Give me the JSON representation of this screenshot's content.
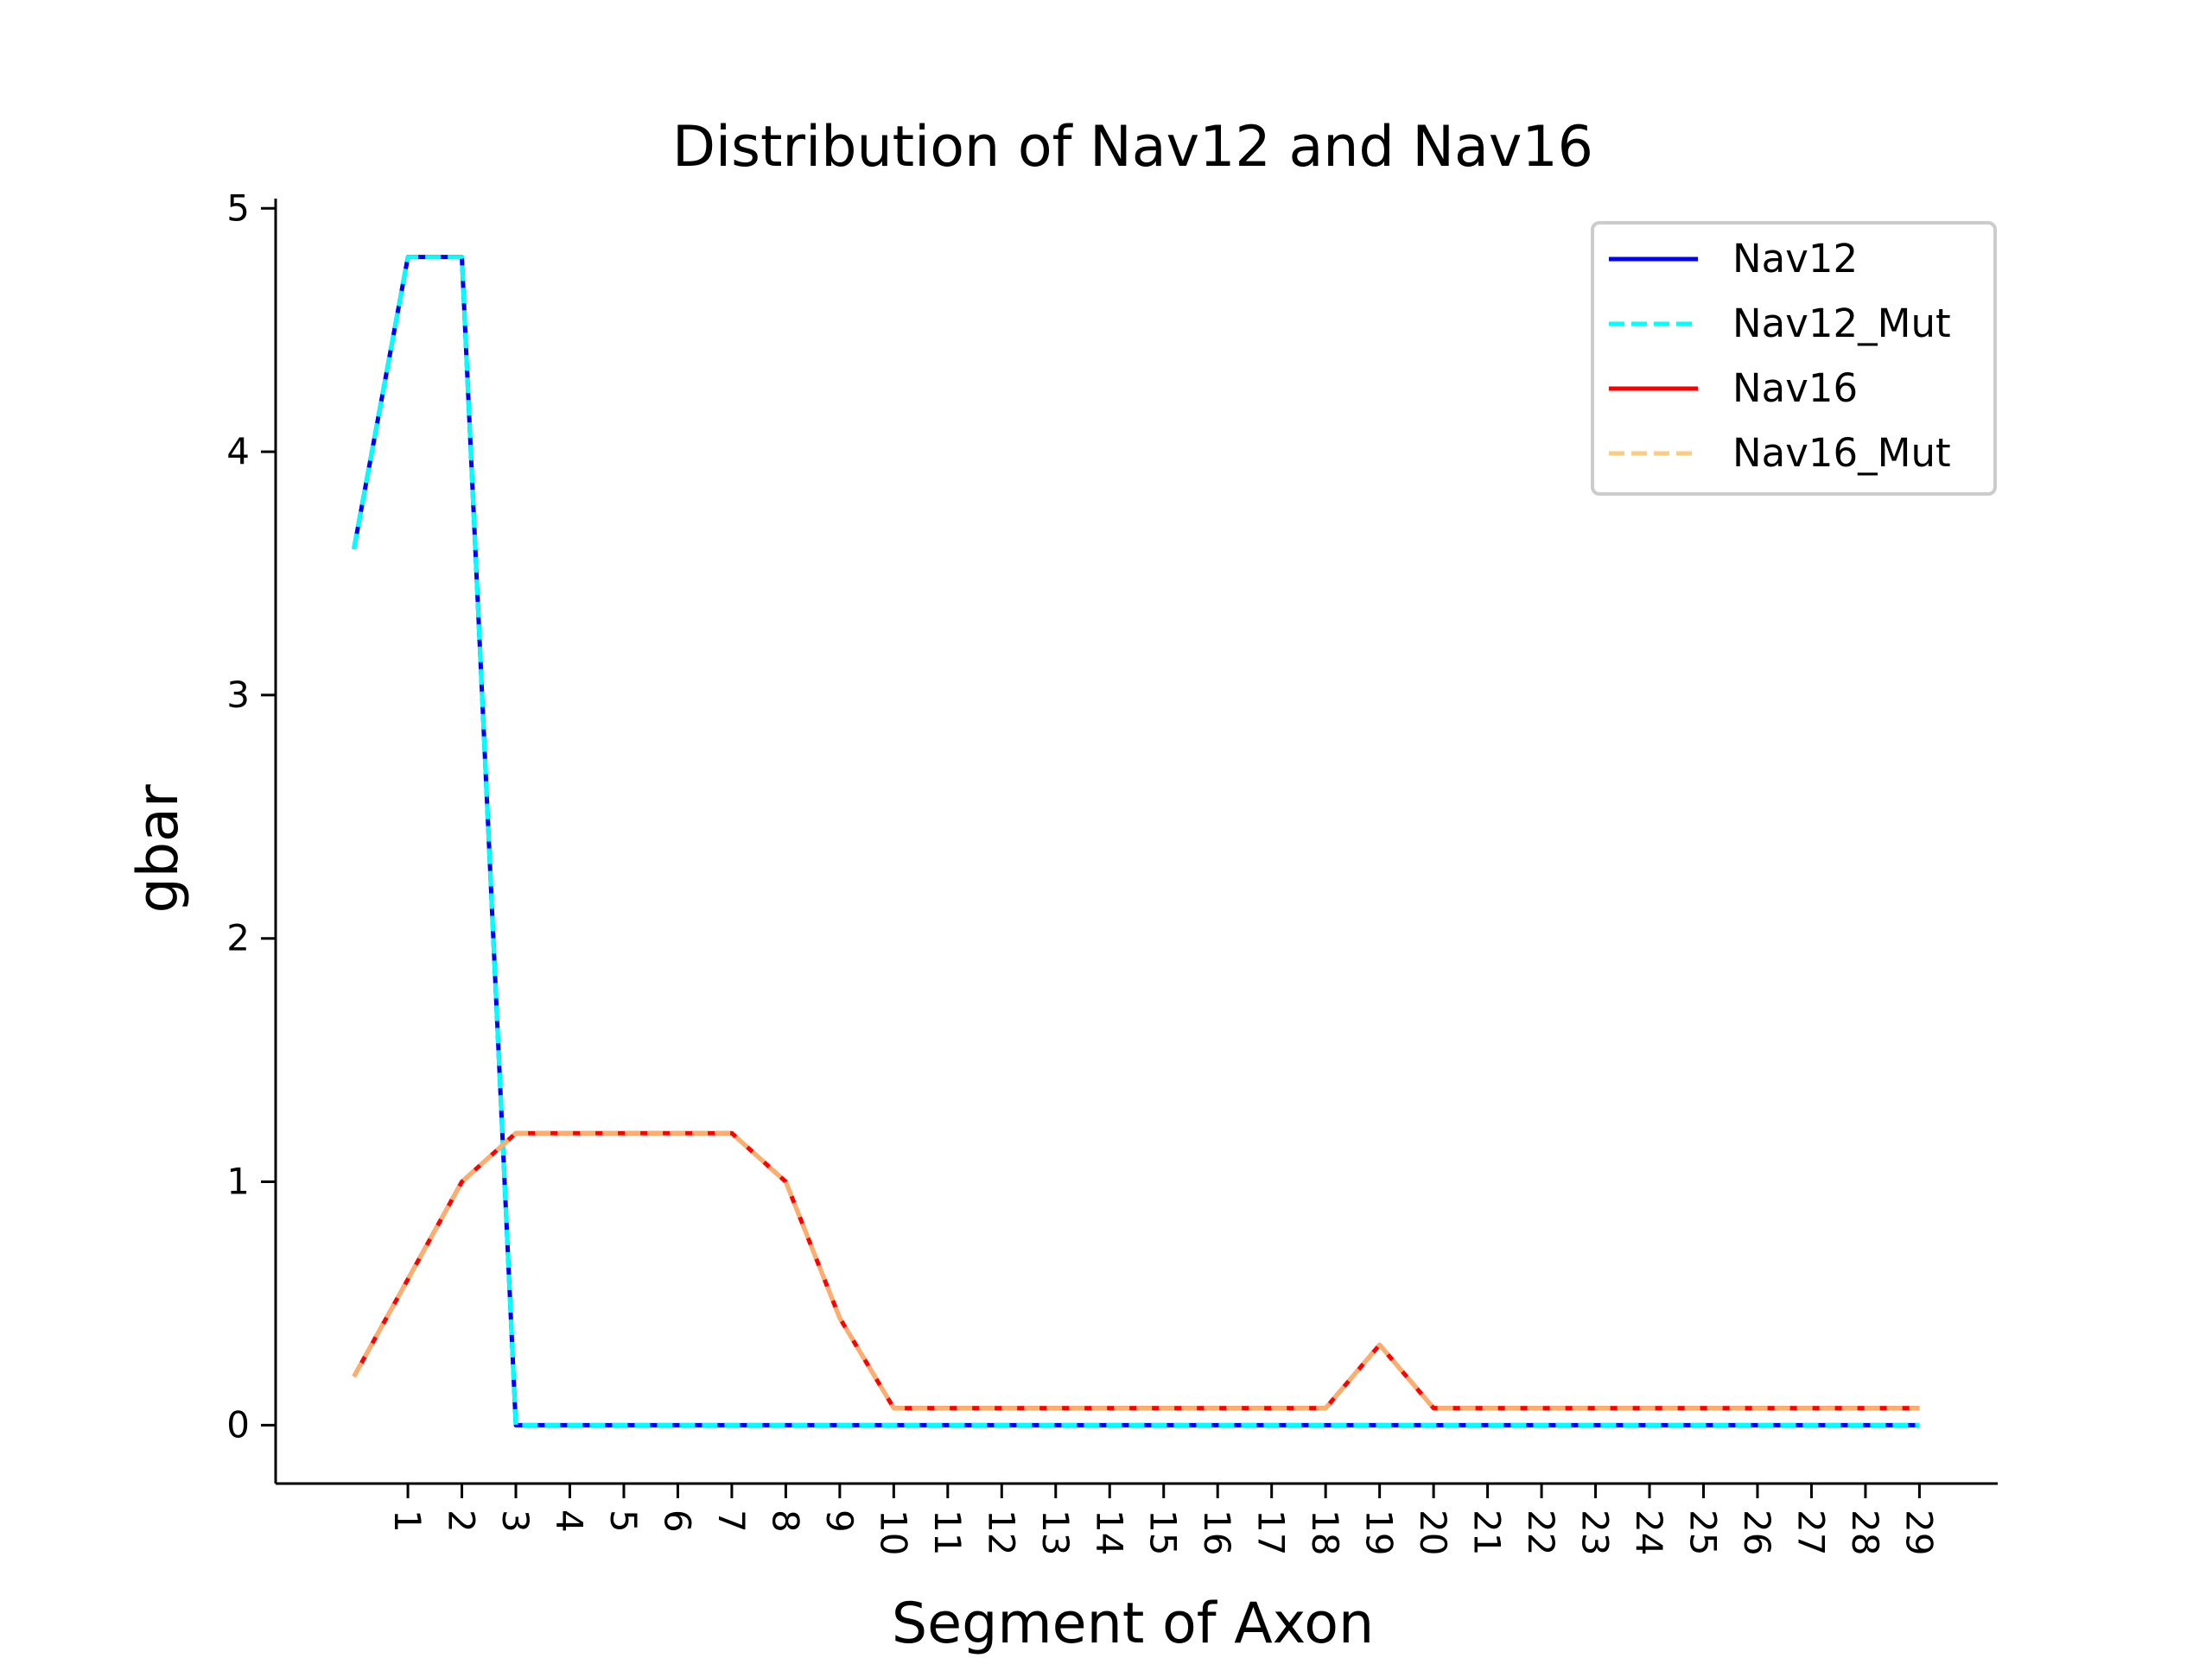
{
  "chart_data": {
    "type": "line",
    "title": "Distribution of Nav12 and Nav16",
    "xlabel": "Segment of Axon",
    "ylabel": "gbar",
    "x": [
      0,
      1,
      2,
      3,
      4,
      5,
      6,
      7,
      8,
      9,
      10,
      11,
      12,
      13,
      14,
      15,
      16,
      17,
      18,
      19,
      20,
      21,
      22,
      23,
      24,
      25,
      26,
      27,
      28,
      29
    ],
    "xticks": [
      1,
      2,
      3,
      4,
      5,
      6,
      7,
      8,
      9,
      10,
      11,
      12,
      13,
      14,
      15,
      16,
      17,
      18,
      19,
      20,
      21,
      22,
      23,
      24,
      25,
      26,
      27,
      28,
      29
    ],
    "yticks": [
      0,
      1,
      2,
      3,
      4,
      5
    ],
    "xlim": [
      -1.45,
      30.45
    ],
    "ylim": [
      -0.24,
      5.04
    ],
    "legend_position": "top-right",
    "grid": false,
    "series": [
      {
        "name": "Nav12",
        "color": "#0000ff",
        "style": "solid",
        "values": [
          3.6,
          4.8,
          4.8,
          0,
          0,
          0,
          0,
          0,
          0,
          0,
          0,
          0,
          0,
          0,
          0,
          0,
          0,
          0,
          0,
          0,
          0,
          0,
          0,
          0,
          0,
          0,
          0,
          0,
          0,
          0
        ]
      },
      {
        "name": "Nav12_Mut",
        "color": "#00ffff",
        "style": "dashed",
        "values": [
          3.6,
          4.8,
          4.8,
          0,
          0,
          0,
          0,
          0,
          0,
          0,
          0,
          0,
          0,
          0,
          0,
          0,
          0,
          0,
          0,
          0,
          0,
          0,
          0,
          0,
          0,
          0,
          0,
          0,
          0,
          0
        ]
      },
      {
        "name": "Nav16",
        "color": "#ff0000",
        "style": "solid",
        "values": [
          0.2,
          0.6,
          1.0,
          1.2,
          1.2,
          1.2,
          1.2,
          1.2,
          1.0,
          0.44,
          0.07,
          0.07,
          0.07,
          0.07,
          0.07,
          0.07,
          0.07,
          0.07,
          0.07,
          0.33,
          0.07,
          0.07,
          0.07,
          0.07,
          0.07,
          0.07,
          0.07,
          0.07,
          0.07,
          0.07
        ]
      },
      {
        "name": "Nav16_Mut",
        "color": "#fdcc80",
        "style": "dashed",
        "values": [
          0.2,
          0.6,
          1.0,
          1.2,
          1.2,
          1.2,
          1.2,
          1.2,
          1.0,
          0.44,
          0.07,
          0.07,
          0.07,
          0.07,
          0.07,
          0.07,
          0.07,
          0.07,
          0.07,
          0.33,
          0.07,
          0.07,
          0.07,
          0.07,
          0.07,
          0.07,
          0.07,
          0.07,
          0.07,
          0.07
        ]
      }
    ]
  }
}
